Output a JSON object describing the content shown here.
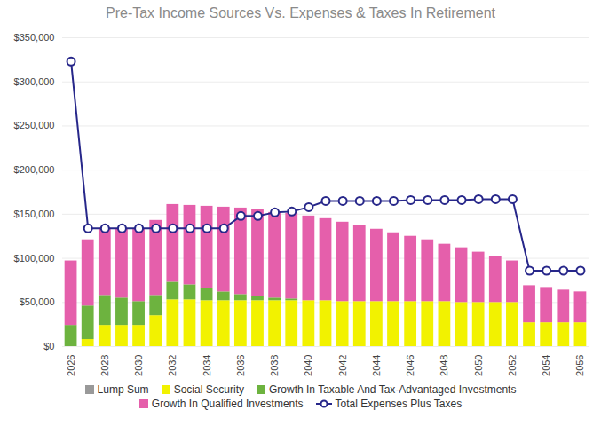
{
  "chart_data": {
    "type": "bar",
    "title": "Pre-Tax Income Sources Vs. Expenses & Taxes In Retirement",
    "stacked": true,
    "grid": true,
    "legend": "bottom",
    "categories": [
      "2026",
      null,
      "2028",
      null,
      "2030",
      null,
      "2032",
      null,
      "2034",
      null,
      "2036",
      null,
      "2038",
      null,
      "2040",
      null,
      "2042",
      null,
      "2044",
      null,
      "2046",
      null,
      "2048",
      null,
      "2050",
      null,
      "2052",
      null,
      "2054",
      null,
      "2056"
    ],
    "ylim": [
      0,
      350000
    ],
    "yticks": [
      {
        "value": 0,
        "label": "$0"
      },
      {
        "value": 50000,
        "label": "$50,000"
      },
      {
        "value": 100000,
        "label": "$100,000"
      },
      {
        "value": 150000,
        "label": "$150,000"
      },
      {
        "value": 200000,
        "label": "$200,000"
      },
      {
        "value": 250000,
        "label": "$250,000"
      },
      {
        "value": 300000,
        "label": "$300,000"
      },
      {
        "value": 350000,
        "label": "$350,000"
      }
    ],
    "series": [
      {
        "name": "Lump Sum",
        "type": "bar",
        "color": "#999999",
        "values": [
          0,
          0,
          0,
          0,
          0,
          0,
          0,
          0,
          0,
          0,
          0,
          0,
          0,
          0,
          0,
          0,
          0,
          0,
          0,
          0,
          0,
          0,
          0,
          0,
          0,
          0,
          0,
          0,
          0,
          0,
          0
        ]
      },
      {
        "name": "Social Security",
        "type": "bar",
        "color": "#f2f200",
        "values": [
          0,
          8000,
          24000,
          24000,
          24000,
          35000,
          53000,
          53000,
          52000,
          52000,
          52000,
          52000,
          52000,
          52000,
          52000,
          52000,
          51000,
          51000,
          51000,
          51000,
          51000,
          51000,
          51000,
          50000,
          50000,
          50000,
          50000,
          27000,
          27000,
          27000,
          27000
        ]
      },
      {
        "name": "Growth In Taxable And Tax-Advantaged Investments",
        "type": "bar",
        "color": "#6db33f",
        "values": [
          24000,
          38000,
          34000,
          31000,
          27000,
          23000,
          20000,
          17000,
          14000,
          10000,
          7000,
          5000,
          3000,
          2000,
          0,
          0,
          0,
          0,
          0,
          0,
          0,
          0,
          0,
          0,
          0,
          0,
          0,
          0,
          0,
          0,
          0
        ]
      },
      {
        "name": "Growth In Qualified Investments",
        "type": "bar",
        "color": "#e55fab",
        "values": [
          73000,
          75000,
          76000,
          78000,
          82000,
          85000,
          88000,
          90000,
          93000,
          96000,
          98000,
          98000,
          97000,
          97000,
          96000,
          93000,
          90000,
          86000,
          82000,
          78000,
          74000,
          70000,
          65000,
          62000,
          57000,
          52000,
          47000,
          42000,
          40000,
          37000,
          35000
        ]
      },
      {
        "name": "Total Expenses Plus Taxes",
        "type": "line",
        "color": "#27278a",
        "marker": "circle",
        "values": [
          323000,
          134000,
          134000,
          134000,
          134000,
          134000,
          134000,
          134000,
          134000,
          134000,
          148000,
          148000,
          152000,
          153000,
          158000,
          165000,
          165000,
          165000,
          165000,
          165000,
          166000,
          166000,
          166000,
          166000,
          167000,
          167000,
          167000,
          86000,
          86000,
          86000,
          86000
        ]
      }
    ]
  }
}
